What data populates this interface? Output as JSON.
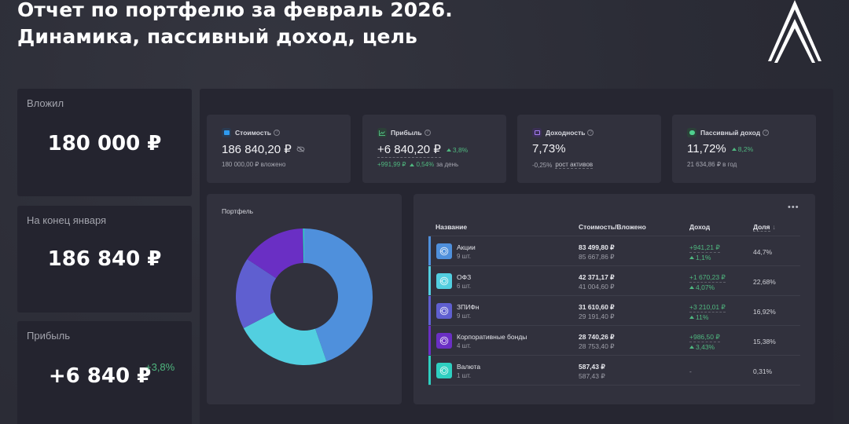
{
  "header": {
    "title_line1": "Отчет по портфелю за февраль 2026.",
    "title_line2": "Динамика, пассивный доход, цель",
    "logo": "double-chevron-logo"
  },
  "summary_cards": [
    {
      "label": "Вложил",
      "value": "180 000 ₽"
    },
    {
      "label": "На конец января",
      "value": "186 840 ₽"
    },
    {
      "label": "Прибыль",
      "value": "+6 840 ₽",
      "delta": "+3,8%"
    }
  ],
  "stats": [
    {
      "title": "Стоимость",
      "icon": "wallet-icon",
      "icon_color": "#2f9bf0",
      "value": "186 840,20 ₽",
      "sub": "180 000,00 ₽ вложено"
    },
    {
      "title": "Прибыль",
      "icon": "chart-icon",
      "icon_color": "#4fb77f",
      "value": "+6 840,20 ₽",
      "badge": "3,8%",
      "sub_amount": "+991,99 ₽",
      "sub_pct": "0,54%",
      "sub_suffix": "за день"
    },
    {
      "title": "Доходность",
      "icon": "calendar-icon",
      "icon_color": "#8d5cf0",
      "value": "7,73%",
      "sub_pct": "-0,25%",
      "sub_link": "рост активов"
    },
    {
      "title": "Пассивный доход",
      "icon": "piggy-bank-icon",
      "icon_color": "#4fd08f",
      "value": "11,72%",
      "badge": "8,2%",
      "sub": "21 634,86 ₽ в год"
    }
  ],
  "portfolio_chart": {
    "title": "Портфель"
  },
  "chart_data": {
    "type": "pie",
    "title": "Портфель",
    "categories": [
      "Акции",
      "ОФЗ",
      "ЗПИФн",
      "Корпоративные бонды",
      "Валюта"
    ],
    "values": [
      44.7,
      22.68,
      16.92,
      15.38,
      0.31
    ],
    "colors": [
      "#4f90dc",
      "#52cfe0",
      "#5f5fd0",
      "#6a2fc4",
      "#2ecfc0"
    ],
    "donut": true
  },
  "table": {
    "more_label": "•••",
    "columns": {
      "name": "Название",
      "value": "Стоимость/Вложено",
      "income": "Доход",
      "share": "Доля"
    },
    "sort_icon": "↓",
    "rows": [
      {
        "name": "Акции",
        "qty": "9 шт.",
        "value": "83 499,80 ₽",
        "invested": "85 667,86 ₽",
        "income": "+941,21 ₽",
        "income_pct": "1,1%",
        "share": "44,7%",
        "color": "#4f90dc"
      },
      {
        "name": "ОФЗ",
        "qty": "6 шт.",
        "value": "42 371,17 ₽",
        "invested": "41 004,60 ₽",
        "income": "+1 670,23 ₽",
        "income_pct": "4,07%",
        "share": "22,68%",
        "color": "#52cfe0"
      },
      {
        "name": "ЗПИФн",
        "qty": "9 шт.",
        "value": "31 610,60 ₽",
        "invested": "29 191,40 ₽",
        "income": "+3 210,01 ₽",
        "income_pct": "11%",
        "share": "16,92%",
        "color": "#5f5fd0"
      },
      {
        "name": "Корпоративные бонды",
        "qty": "4 шт.",
        "value": "28 740,26 ₽",
        "invested": "28 753,40 ₽",
        "income": "+986,50 ₽",
        "income_pct": "3,43%",
        "share": "15,38%",
        "color": "#6a2fc4"
      },
      {
        "name": "Валюта",
        "qty": "1 шт.",
        "value": "587,43 ₽",
        "invested": "587,43 ₽",
        "income": "-",
        "income_pct": "",
        "share": "0,31%",
        "color": "#2ecfc0"
      }
    ]
  }
}
